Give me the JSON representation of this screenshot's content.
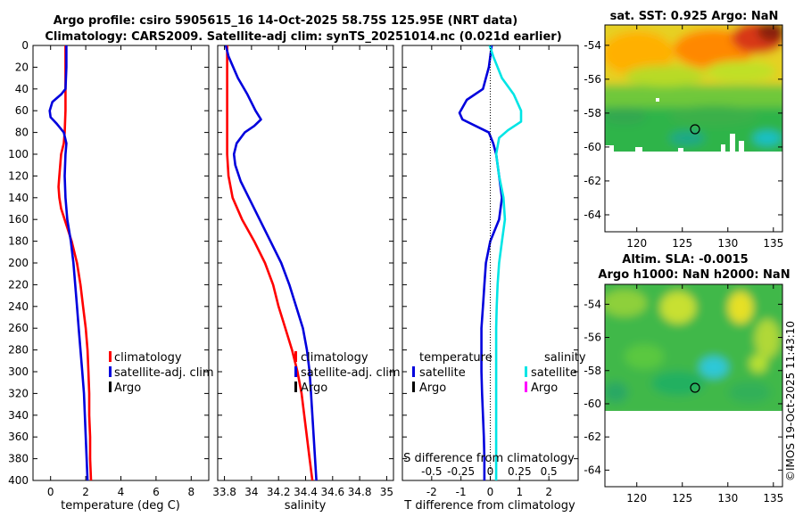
{
  "figure": {
    "title_line1": "Argo profile: csiro 5905615_16 14-Oct-2025 58.75S 125.95E (NRT data)",
    "title_line2": "Climatology: CARS2009. Satellite-adj clim: synTS_20251014.nc (0.021d earlier)",
    "timestamp": "©IMOS 19-Oct-2025 11:43:10"
  },
  "colors": {
    "climatology": "#ff0000",
    "satellite": "#0000dd",
    "argo": "#000000",
    "sal_satellite": "#00e5e5",
    "sal_argo": "#ff00ff"
  },
  "legends": {
    "temp": [
      "climatology",
      "satellite-adj. clim",
      "Argo"
    ],
    "sal": [
      "climatology",
      "satellite-adj. clim",
      "Argo"
    ],
    "diff_temp_head": "temperature",
    "diff_sal_head": "salinity",
    "diff_temp": [
      "satellite",
      "Argo"
    ],
    "diff_sal": [
      "satellite",
      "Argo"
    ]
  },
  "chart_data": [
    {
      "type": "line",
      "id": "temperature",
      "xlabel": "temperature (deg C)",
      "ylabel": "",
      "xlim": [
        -1,
        9
      ],
      "ylim": [
        0,
        400
      ],
      "xticks": [
        "0",
        "2",
        "4",
        "6",
        "8"
      ],
      "yticks": [
        "0",
        "20",
        "40",
        "60",
        "80",
        "100",
        "120",
        "140",
        "160",
        "180",
        "200",
        "220",
        "240",
        "260",
        "280",
        "300",
        "320",
        "340",
        "360",
        "380",
        "400"
      ],
      "series": [
        {
          "name": "climatology",
          "color": "#ff0000",
          "points": [
            [
              0.85,
              0
            ],
            [
              0.85,
              20
            ],
            [
              0.85,
              40
            ],
            [
              0.85,
              60
            ],
            [
              0.8,
              80
            ],
            [
              0.75,
              90
            ],
            [
              0.6,
              100
            ],
            [
              0.5,
              120
            ],
            [
              0.45,
              130
            ],
            [
              0.5,
              140
            ],
            [
              0.6,
              150
            ],
            [
              0.9,
              165
            ],
            [
              1.2,
              180
            ],
            [
              1.5,
              200
            ],
            [
              1.7,
              220
            ],
            [
              1.85,
              240
            ],
            [
              2.0,
              260
            ],
            [
              2.1,
              280
            ],
            [
              2.15,
              300
            ],
            [
              2.2,
              320
            ],
            [
              2.2,
              340
            ],
            [
              2.25,
              360
            ],
            [
              2.25,
              380
            ],
            [
              2.3,
              400
            ]
          ]
        },
        {
          "name": "satellite-adj. clim",
          "color": "#0000dd",
          "points": [
            [
              0.9,
              0
            ],
            [
              0.9,
              20
            ],
            [
              0.85,
              40
            ],
            [
              0.6,
              45
            ],
            [
              0.1,
              52
            ],
            [
              -0.05,
              60
            ],
            [
              0,
              66
            ],
            [
              0.35,
              72
            ],
            [
              0.75,
              80
            ],
            [
              0.9,
              90
            ],
            [
              0.85,
              100
            ],
            [
              0.8,
              120
            ],
            [
              0.85,
              140
            ],
            [
              0.95,
              160
            ],
            [
              1.15,
              180
            ],
            [
              1.3,
              200
            ],
            [
              1.4,
              220
            ],
            [
              1.5,
              240
            ],
            [
              1.6,
              260
            ],
            [
              1.7,
              280
            ],
            [
              1.8,
              300
            ],
            [
              1.9,
              320
            ],
            [
              1.95,
              340
            ],
            [
              2.0,
              360
            ],
            [
              2.05,
              380
            ],
            [
              2.1,
              400
            ]
          ]
        }
      ]
    },
    {
      "type": "line",
      "id": "salinity",
      "xlabel": "salinity",
      "ylabel": "",
      "xlim": [
        33.75,
        35.05
      ],
      "ylim": [
        0,
        400
      ],
      "xticks": [
        "33.8",
        "34",
        "34.2",
        "34.4",
        "34.6",
        "34.8",
        "35"
      ],
      "series": [
        {
          "name": "climatology",
          "color": "#ff0000",
          "points": [
            [
              33.82,
              0
            ],
            [
              33.82,
              20
            ],
            [
              33.82,
              40
            ],
            [
              33.82,
              60
            ],
            [
              33.82,
              80
            ],
            [
              33.82,
              100
            ],
            [
              33.83,
              120
            ],
            [
              33.86,
              140
            ],
            [
              33.93,
              160
            ],
            [
              34.02,
              180
            ],
            [
              34.1,
              200
            ],
            [
              34.16,
              220
            ],
            [
              34.2,
              240
            ],
            [
              34.25,
              260
            ],
            [
              34.3,
              280
            ],
            [
              34.34,
              300
            ],
            [
              34.37,
              320
            ],
            [
              34.39,
              340
            ],
            [
              34.41,
              360
            ],
            [
              34.43,
              380
            ],
            [
              34.45,
              400
            ]
          ]
        },
        {
          "name": "satellite-adj. clim",
          "color": "#0000dd",
          "points": [
            [
              33.81,
              0
            ],
            [
              33.83,
              10
            ],
            [
              33.9,
              30
            ],
            [
              33.97,
              45
            ],
            [
              34.03,
              60
            ],
            [
              34.07,
              68
            ],
            [
              34.02,
              74
            ],
            [
              33.95,
              80
            ],
            [
              33.89,
              90
            ],
            [
              33.87,
              100
            ],
            [
              33.88,
              110
            ],
            [
              33.92,
              125
            ],
            [
              33.98,
              140
            ],
            [
              34.06,
              160
            ],
            [
              34.14,
              180
            ],
            [
              34.22,
              200
            ],
            [
              34.28,
              220
            ],
            [
              34.33,
              240
            ],
            [
              34.38,
              260
            ],
            [
              34.41,
              280
            ],
            [
              34.43,
              300
            ],
            [
              34.44,
              320
            ],
            [
              34.45,
              340
            ],
            [
              34.46,
              360
            ],
            [
              34.47,
              380
            ],
            [
              34.48,
              400
            ]
          ]
        }
      ]
    },
    {
      "type": "line",
      "id": "difference",
      "xlabel": "T difference from climatology",
      "top_xlabel": "S difference from climatology",
      "ylabel": "",
      "xlim": [
        -3,
        3
      ],
      "ylim": [
        0,
        400
      ],
      "xticks": [
        "-2",
        "-1",
        "0",
        "1",
        "2"
      ],
      "top_xticks": [
        "-0.5",
        "-0.25",
        "0",
        "0.25",
        "0.5"
      ],
      "series": [
        {
          "name": "temperature satellite",
          "color": "#0000dd",
          "points": [
            [
              0.05,
              0
            ],
            [
              -0.05,
              20
            ],
            [
              -0.25,
              40
            ],
            [
              -0.8,
              50
            ],
            [
              -1.05,
              62
            ],
            [
              -0.95,
              68
            ],
            [
              -0.5,
              74
            ],
            [
              -0.05,
              80
            ],
            [
              0.1,
              90
            ],
            [
              0.2,
              100
            ],
            [
              0.3,
              120
            ],
            [
              0.4,
              140
            ],
            [
              0.3,
              160
            ],
            [
              0,
              180
            ],
            [
              -0.15,
              200
            ],
            [
              -0.2,
              220
            ],
            [
              -0.25,
              240
            ],
            [
              -0.3,
              260
            ],
            [
              -0.3,
              280
            ],
            [
              -0.3,
              300
            ],
            [
              -0.28,
              320
            ],
            [
              -0.25,
              340
            ],
            [
              -0.22,
              360
            ],
            [
              -0.2,
              380
            ],
            [
              -0.2,
              400
            ]
          ]
        },
        {
          "name": "salinity satellite",
          "color": "#00e5e5",
          "points": [
            [
              -0.02,
              0
            ],
            [
              0.1,
              10
            ],
            [
              0.4,
              30
            ],
            [
              0.8,
              45
            ],
            [
              1.05,
              60
            ],
            [
              1.05,
              70
            ],
            [
              0.6,
              78
            ],
            [
              0.3,
              85
            ],
            [
              0.2,
              100
            ],
            [
              0.3,
              120
            ],
            [
              0.45,
              140
            ],
            [
              0.5,
              160
            ],
            [
              0.4,
              180
            ],
            [
              0.3,
              200
            ],
            [
              0.25,
              220
            ],
            [
              0.22,
              240
            ],
            [
              0.2,
              260
            ],
            [
              0.2,
              280
            ],
            [
              0.2,
              300
            ],
            [
              0.2,
              320
            ],
            [
              0.2,
              340
            ],
            [
              0.2,
              360
            ],
            [
              0.2,
              380
            ],
            [
              0.2,
              400
            ]
          ]
        }
      ]
    },
    {
      "type": "heatmap",
      "id": "sst_map",
      "title": "sat. SST: 0.925 Argo: NaN",
      "xlim": [
        116.5,
        136
      ],
      "ylim": [
        -65,
        -52.8
      ],
      "xticks": [
        "120",
        "125",
        "130",
        "135"
      ],
      "yticks": [
        "-54",
        "-56",
        "-58",
        "-60",
        "-62",
        "-64"
      ],
      "argo_lon": 126,
      "argo_lat": -58.75,
      "data_limit_lat": -60
    },
    {
      "type": "heatmap",
      "id": "sla_map",
      "title_line1": "Altim. SLA: -0.0015",
      "title_line2": "Argo h1000: NaN h2000: NaN",
      "xlim": [
        116.5,
        136
      ],
      "ylim": [
        -65,
        -52.8
      ],
      "xticks": [
        "120",
        "125",
        "130",
        "135"
      ],
      "yticks": [
        "-54",
        "-56",
        "-58",
        "-60",
        "-62",
        "-64"
      ],
      "argo_lon": 126,
      "argo_lat": -58.75,
      "data_limit_lat": -60
    }
  ]
}
